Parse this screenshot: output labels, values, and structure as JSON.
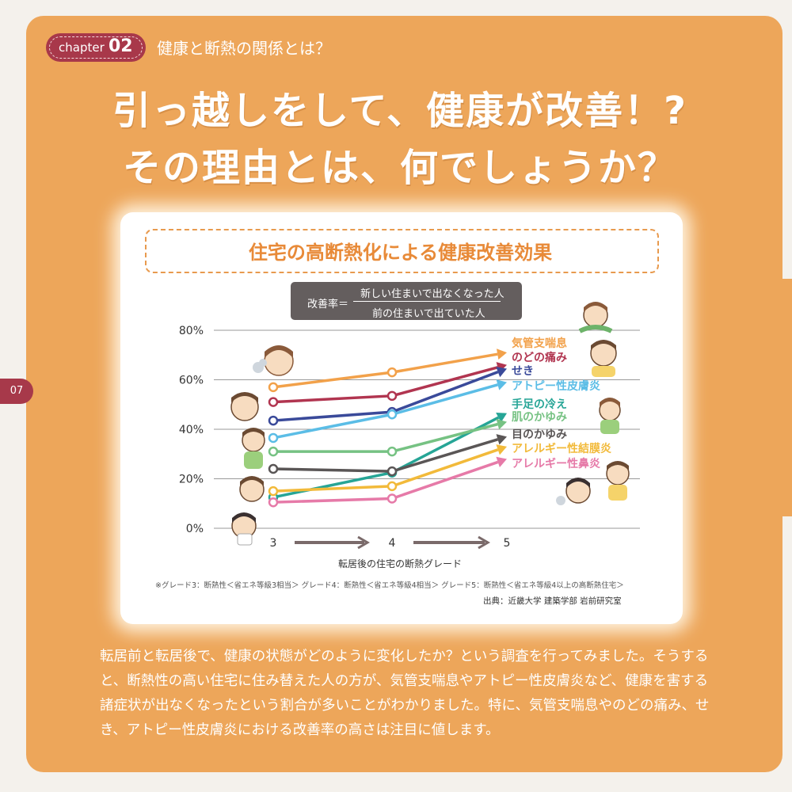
{
  "page": {
    "number": "07"
  },
  "chapter": {
    "word": "chapter",
    "number": "02",
    "title": "健康と断熱の関係とは？"
  },
  "headline": {
    "line1": "引っ越しをして、健康が改善！?",
    "line2": "その理由とは、何でしょうか？"
  },
  "chart_title": "住宅の高断熱化による健康改善効果",
  "formula": {
    "label": "改善率＝",
    "numerator": "新しい住まいで出なくなった人",
    "denominator": "前の住まいで出ていた人"
  },
  "chart_data": {
    "type": "line",
    "title": "住宅の高断熱化による健康改善効果",
    "xlabel": "転居後の住宅の断熱グレード",
    "ylabel": "",
    "x": [
      3,
      4,
      5
    ],
    "y_ticks": [
      "0%",
      "20%",
      "40%",
      "60%",
      "80%"
    ],
    "ylim": [
      0,
      80
    ],
    "grid": true,
    "series": [
      {
        "name": "気管支喘息",
        "values": [
          57,
          63,
          71
        ],
        "color": "#f2a14a"
      },
      {
        "name": "のどの痛み",
        "values": [
          51,
          53.5,
          66
        ],
        "color": "#b13550"
      },
      {
        "name": "せき",
        "values": [
          43.5,
          47,
          64.5
        ],
        "color": "#3a4a9a"
      },
      {
        "name": "アトピー性皮膚炎",
        "values": [
          36.5,
          46,
          59
        ],
        "color": "#5bbde6"
      },
      {
        "name": "手足の冷え",
        "values": [
          12.5,
          22.5,
          46.5
        ],
        "color": "#26a596"
      },
      {
        "name": "肌のかゆみ",
        "values": [
          31,
          31,
          43
        ],
        "color": "#76c283"
      },
      {
        "name": "目のかゆみ",
        "values": [
          24,
          23,
          37
        ],
        "color": "#5a5656"
      },
      {
        "name": "アレルギー性結膜炎",
        "values": [
          15,
          17,
          33
        ],
        "color": "#f2ba3a"
      },
      {
        "name": "アレルギー性鼻炎",
        "values": [
          10.5,
          12,
          28
        ],
        "color": "#e67aa8"
      }
    ],
    "legend_placement": "right"
  },
  "note": "※グレード3：断熱性＜省エネ等級3相当＞ グレード4：断熱性＜省エネ等級4相当＞ グレード5：断熱性＜省エネ等級4以上の高断熱住宅＞",
  "source": "出典：近畿大学 建築学部 岩前研究室",
  "body": "転居前と転居後で、健康の状態がどのように変化したか？という調査を行ってみました。そうすると、断熱性の高い住宅に住み替えた人の方が、気管支喘息やアトピー性皮膚炎など、健康を害する諸症状が出なくなったという割合が多いことがわかりました。特に、気管支喘息やのどの痛み、せき、アトピー性皮膚炎における改善率の高さは注目に値します。"
}
